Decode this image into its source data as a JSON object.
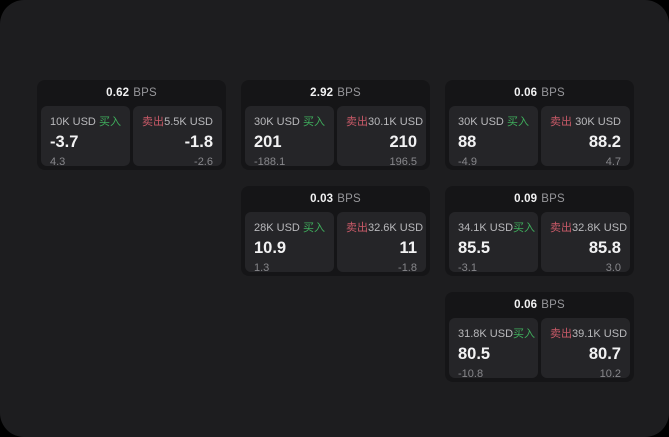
{
  "labels": {
    "buy": "买入",
    "sell": "卖出",
    "bps_unit": "BPS"
  },
  "colors": {
    "page_bg": "#1d1d1f",
    "card_bg": "#151517",
    "panel_bg": "#252528",
    "buy_green": "#3fae5c",
    "sell_red": "#c95a68",
    "text_primary": "#f2f2f3",
    "text_secondary": "#97979b",
    "text_amount": "#b9b9bc",
    "text_muted": "#87878b"
  },
  "cards": [
    {
      "col": 1,
      "row": 1,
      "bps_value": "0.62",
      "buy": {
        "amount": "10K USD",
        "price": "-3.7",
        "delta": "4.3"
      },
      "sell": {
        "amount": "5.5K USD",
        "price": "-1.8",
        "delta": "-2.6"
      }
    },
    {
      "col": 2,
      "row": 1,
      "bps_value": "2.92",
      "buy": {
        "amount": "30K USD",
        "price": "201",
        "delta": "-188.1"
      },
      "sell": {
        "amount": "30.1K USD",
        "price": "210",
        "delta": "196.5"
      }
    },
    {
      "col": 3,
      "row": 1,
      "bps_value": "0.06",
      "buy": {
        "amount": "30K USD",
        "price": "88",
        "delta": "-4.9"
      },
      "sell": {
        "amount": "30K USD",
        "price": "88.2",
        "delta": "4.7"
      }
    },
    {
      "col": 2,
      "row": 2,
      "bps_value": "0.03",
      "buy": {
        "amount": "28K USD",
        "price": "10.9",
        "delta": "1.3"
      },
      "sell": {
        "amount": "32.6K USD",
        "price": "11",
        "delta": "-1.8"
      }
    },
    {
      "col": 3,
      "row": 2,
      "bps_value": "0.09",
      "buy": {
        "amount": "34.1K USD",
        "price": "85.5",
        "delta": "-3.1"
      },
      "sell": {
        "amount": "32.8K USD",
        "price": "85.8",
        "delta": "3.0"
      }
    },
    {
      "col": 3,
      "row": 3,
      "bps_value": "0.06",
      "buy": {
        "amount": "31.8K USD",
        "price": "80.5",
        "delta": "-10.8"
      },
      "sell": {
        "amount": "39.1K USD",
        "price": "80.7",
        "delta": "10.2"
      }
    }
  ]
}
